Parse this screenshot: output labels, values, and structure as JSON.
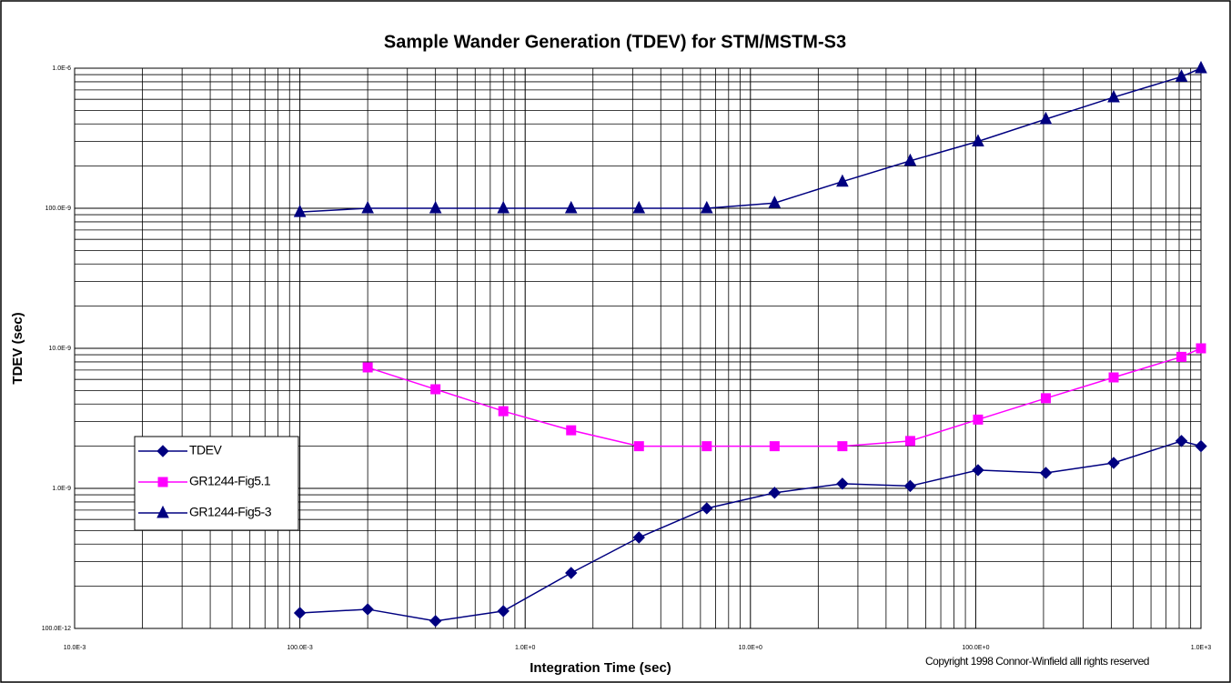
{
  "chart_data": {
    "type": "line",
    "title": "Sample Wander Generation (TDEV) for STM/MSTM-S3",
    "xlabel": "Integration Time (sec)",
    "ylabel": "TDEV (sec)",
    "annotation": "Copyright 1998 Connor-Winfield alll rights reserved",
    "xscale": "log",
    "yscale": "log",
    "grid": true,
    "minor_grid": true,
    "legend": "left",
    "x": [
      0.1,
      0.2,
      0.4,
      0.8,
      1.6,
      3.2,
      6.4,
      12.8,
      25.6,
      51.2,
      102.4,
      204.8,
      409.6,
      819.2,
      1000
    ],
    "series": [
      {
        "name": "TDEV",
        "color": "#000080",
        "marker": "diamond",
        "values": [
          1.29e-10,
          1.37e-10,
          1.13e-10,
          1.33e-10,
          2.49e-10,
          4.46e-10,
          7.2e-10,
          9.3e-10,
          1.08e-09,
          1.04e-09,
          1.35e-09,
          1.29e-09,
          1.52e-09,
          2.18e-09,
          2e-09
        ]
      },
      {
        "name": "GR1244-Fig5.1",
        "color": "#ff00ff",
        "marker": "square",
        "values": [
          null,
          7.3e-09,
          5.1e-09,
          3.56e-09,
          2.6e-09,
          2e-09,
          2e-09,
          2e-09,
          2e-09,
          2.18e-09,
          3.1e-09,
          4.4e-09,
          6.2e-09,
          8.7e-09,
          1e-08
        ]
      },
      {
        "name": "GR1244-Fig5-3",
        "color": "#000080",
        "marker": "triangle",
        "values": [
          9.4e-08,
          1e-07,
          1e-07,
          1e-07,
          1e-07,
          1e-07,
          1e-07,
          1.09e-07,
          1.55e-07,
          2.18e-07,
          3e-07,
          4.33e-07,
          6.2e-07,
          8.7e-07,
          1e-06
        ]
      }
    ],
    "xlim": [
      0.01,
      1000
    ],
    "xticks": [
      {
        "value": 0.01,
        "label": "10.0E-3"
      },
      {
        "value": 0.1,
        "label": "100.0E-3"
      },
      {
        "value": 1,
        "label": "1.0E+0"
      },
      {
        "value": 10,
        "label": "10.0E+0"
      },
      {
        "value": 100,
        "label": "100.0E+0"
      },
      {
        "value": 1000,
        "label": "1.0E+3"
      }
    ],
    "ylim": [
      1e-10,
      1e-06
    ],
    "yticks": [
      {
        "value": 1e-10,
        "label": "100.0E-12"
      },
      {
        "value": 1e-09,
        "label": "1.0E-9"
      },
      {
        "value": 1e-08,
        "label": "10.0E-9"
      },
      {
        "value": 1e-07,
        "label": "100.0E-9"
      },
      {
        "value": 1e-06,
        "label": "1.0E-6"
      }
    ]
  }
}
